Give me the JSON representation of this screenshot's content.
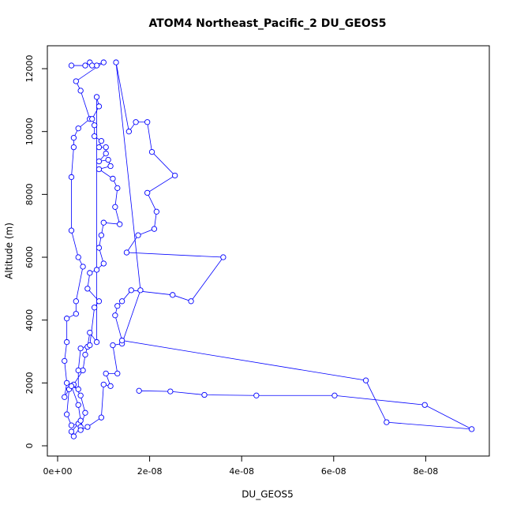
{
  "chart_data": {
    "type": "line",
    "title": "ATOM4 Northeast_Pacific_2 DU_GEOS5",
    "x_label": "DU_GEOS5",
    "y_label": "Altitude (m)",
    "x": [
      3e-09,
      6e-09,
      7e-09,
      8.5e-09,
      7.5e-09,
      1e-08,
      4e-09,
      5e-09,
      7e-09,
      4.5e-09,
      3.5e-09,
      3.5e-09,
      3e-09,
      3e-09,
      4.5e-09,
      5.5e-09,
      4e-09,
      4e-09,
      2e-09,
      2e-09,
      1.5e-09,
      2e-09,
      1.5e-09,
      2.5e-09,
      2e-09,
      3e-09,
      4.5e-09,
      3e-09,
      3.5e-09,
      5e-09,
      6e-09,
      5e-09,
      3.5e-09,
      5.5e-09,
      6e-09,
      6.5e-09,
      7e-09,
      8.5e-09,
      8.5e-09,
      9e-09,
      7.5e-09,
      8e-09,
      8e-09,
      9.5e-09,
      9e-09,
      1.05e-08,
      1.05e-08,
      9e-09,
      1.1e-08,
      1.15e-08,
      9e-09,
      1.2e-08,
      1.3e-08,
      1.25e-08,
      1.35e-08,
      1e-08,
      9.5e-09,
      9e-09,
      1e-08,
      8.5e-09,
      7e-09,
      6.5e-09,
      9e-09,
      8e-09,
      7e-09,
      5e-09,
      4.5e-09,
      4.5e-09,
      3e-09,
      4.5e-09,
      5e-09,
      5e-09,
      6.5e-09,
      9.5e-09,
      1e-08,
      1.15e-08,
      1.05e-08,
      1.3e-08,
      1.2e-08,
      1.4e-08,
      1.8e-08,
      1.27e-08,
      1.55e-08,
      1.7e-08,
      1.95e-08,
      2.05e-08,
      2.55e-08,
      1.95e-08,
      2.15e-08,
      2.1e-08,
      1.75e-08,
      1.5e-08,
      3.6e-08,
      2.9e-08,
      2.5e-08,
      1.6e-08,
      1.4e-08,
      1.3e-08,
      1.25e-08,
      1.4e-08,
      6.7e-08,
      7.15e-08,
      9e-08,
      7.98e-08,
      6.02e-08,
      4.32e-08,
      3.19e-08,
      2.45e-08,
      1.77e-08
    ],
    "series": [
      {
        "color": "#0000ff",
        "values": [
          12100,
          12100,
          12200,
          12100,
          12100,
          12200,
          11600,
          11300,
          10400,
          10100,
          9800,
          9500,
          8550,
          6850,
          6000,
          5700,
          4600,
          4200,
          4050,
          3300,
          2700,
          2000,
          1550,
          1800,
          1000,
          650,
          700,
          450,
          300,
          600,
          1050,
          1600,
          1950,
          2400,
          2900,
          3150,
          3600,
          3300,
          11100,
          10800,
          10400,
          10200,
          9850,
          9700,
          9500,
          9500,
          9300,
          9050,
          9100,
          8900,
          8800,
          8500,
          8200,
          7600,
          7050,
          7100,
          6700,
          6300,
          5800,
          5600,
          5500,
          5000,
          4600,
          4400,
          3200,
          3100,
          2400,
          1800,
          1900,
          1300,
          800,
          500,
          600,
          900,
          1950,
          1900,
          2300,
          2300,
          3200,
          3250,
          4950,
          12200,
          10000,
          10300,
          10300,
          9350,
          8600,
          8050,
          7450,
          6900,
          6700,
          6150,
          6000,
          4600,
          4800,
          4950,
          4600,
          4450,
          4150,
          3350,
          2080,
          750,
          530,
          1300,
          1600,
          1600,
          1620,
          1730,
          1750
        ]
      }
    ],
    "xlim": [
      -2.23e-09,
      9.383e-08
    ],
    "xticks": [
      {
        "value": 0,
        "label": "0e+00"
      },
      {
        "value": 2e-08,
        "label": "2e-08"
      },
      {
        "value": 4e-08,
        "label": "4e-08"
      },
      {
        "value": 6e-08,
        "label": "6e-08"
      },
      {
        "value": 8e-08,
        "label": "8e-08"
      }
    ],
    "ylim": [
      -326,
      12729
    ],
    "yticks": [
      0,
      2000,
      4000,
      6000,
      8000,
      10000,
      12000
    ]
  }
}
